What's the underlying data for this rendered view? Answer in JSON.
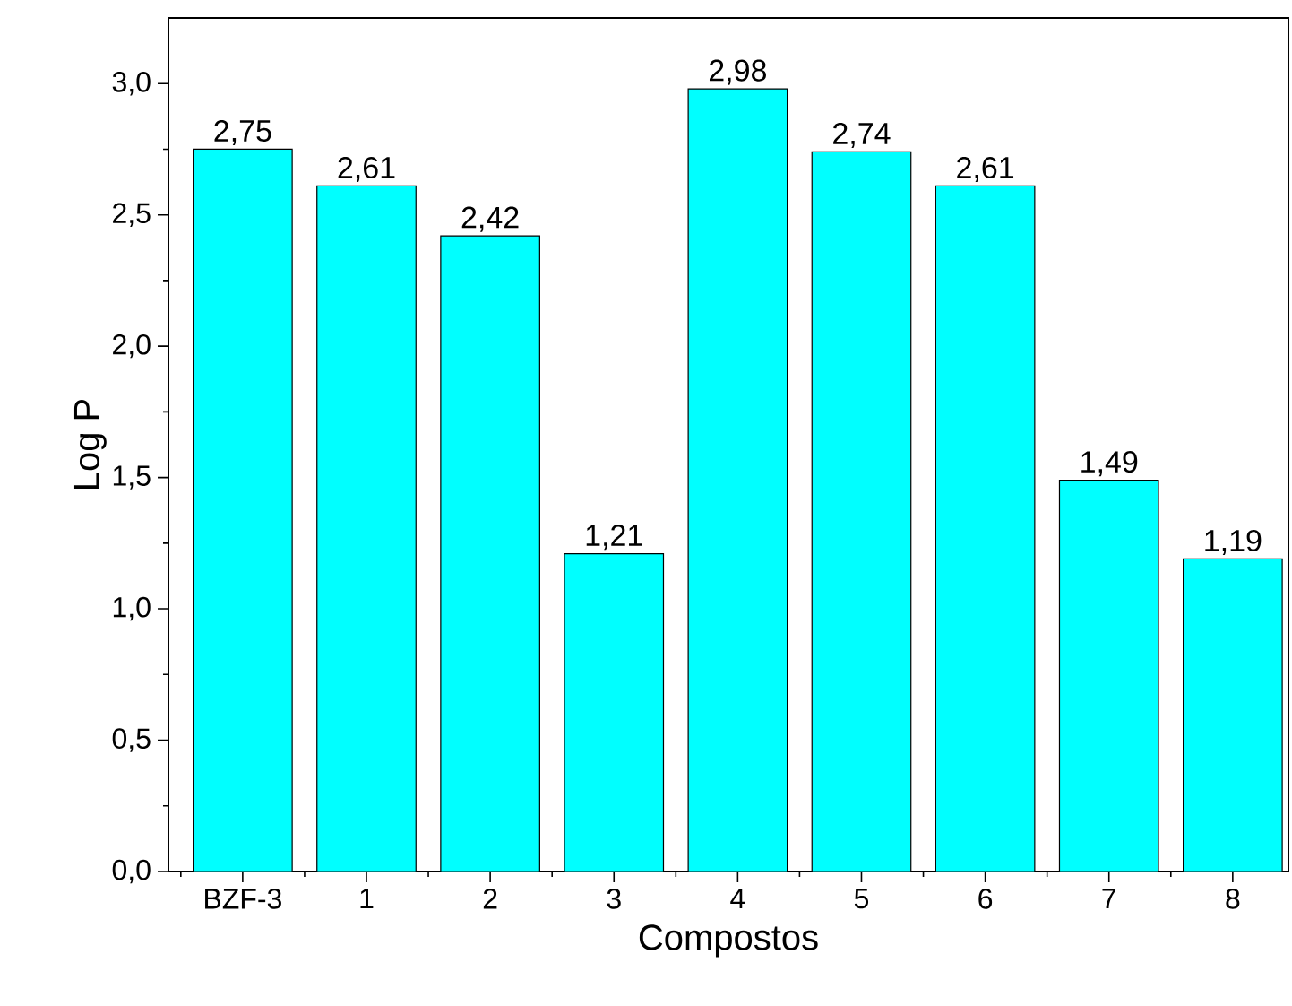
{
  "chart_data": {
    "type": "bar",
    "xlabel": "Compostos",
    "ylabel": "Log P",
    "categories": [
      "BZF-3",
      "1",
      "2",
      "3",
      "4",
      "5",
      "6",
      "7",
      "8"
    ],
    "values": [
      2.75,
      2.61,
      2.42,
      1.21,
      2.98,
      2.74,
      2.61,
      1.49,
      1.19
    ],
    "value_labels": [
      "2,75",
      "2,61",
      "2,42",
      "1,21",
      "2,98",
      "2,74",
      "2,61",
      "1,49",
      "1,19"
    ],
    "color": "#00ffff",
    "ylim": [
      0,
      3.25
    ],
    "yticks": [
      {
        "value": 0,
        "label": "0,0"
      },
      {
        "value": 0.5,
        "label": "0,5"
      },
      {
        "value": 1,
        "label": "1,0"
      },
      {
        "value": 1.5,
        "label": "1,5"
      },
      {
        "value": 2,
        "label": "2,0"
      },
      {
        "value": 2.5,
        "label": "2,5"
      },
      {
        "value": 3,
        "label": "3,0"
      }
    ],
    "grid": false,
    "legend": false
  }
}
